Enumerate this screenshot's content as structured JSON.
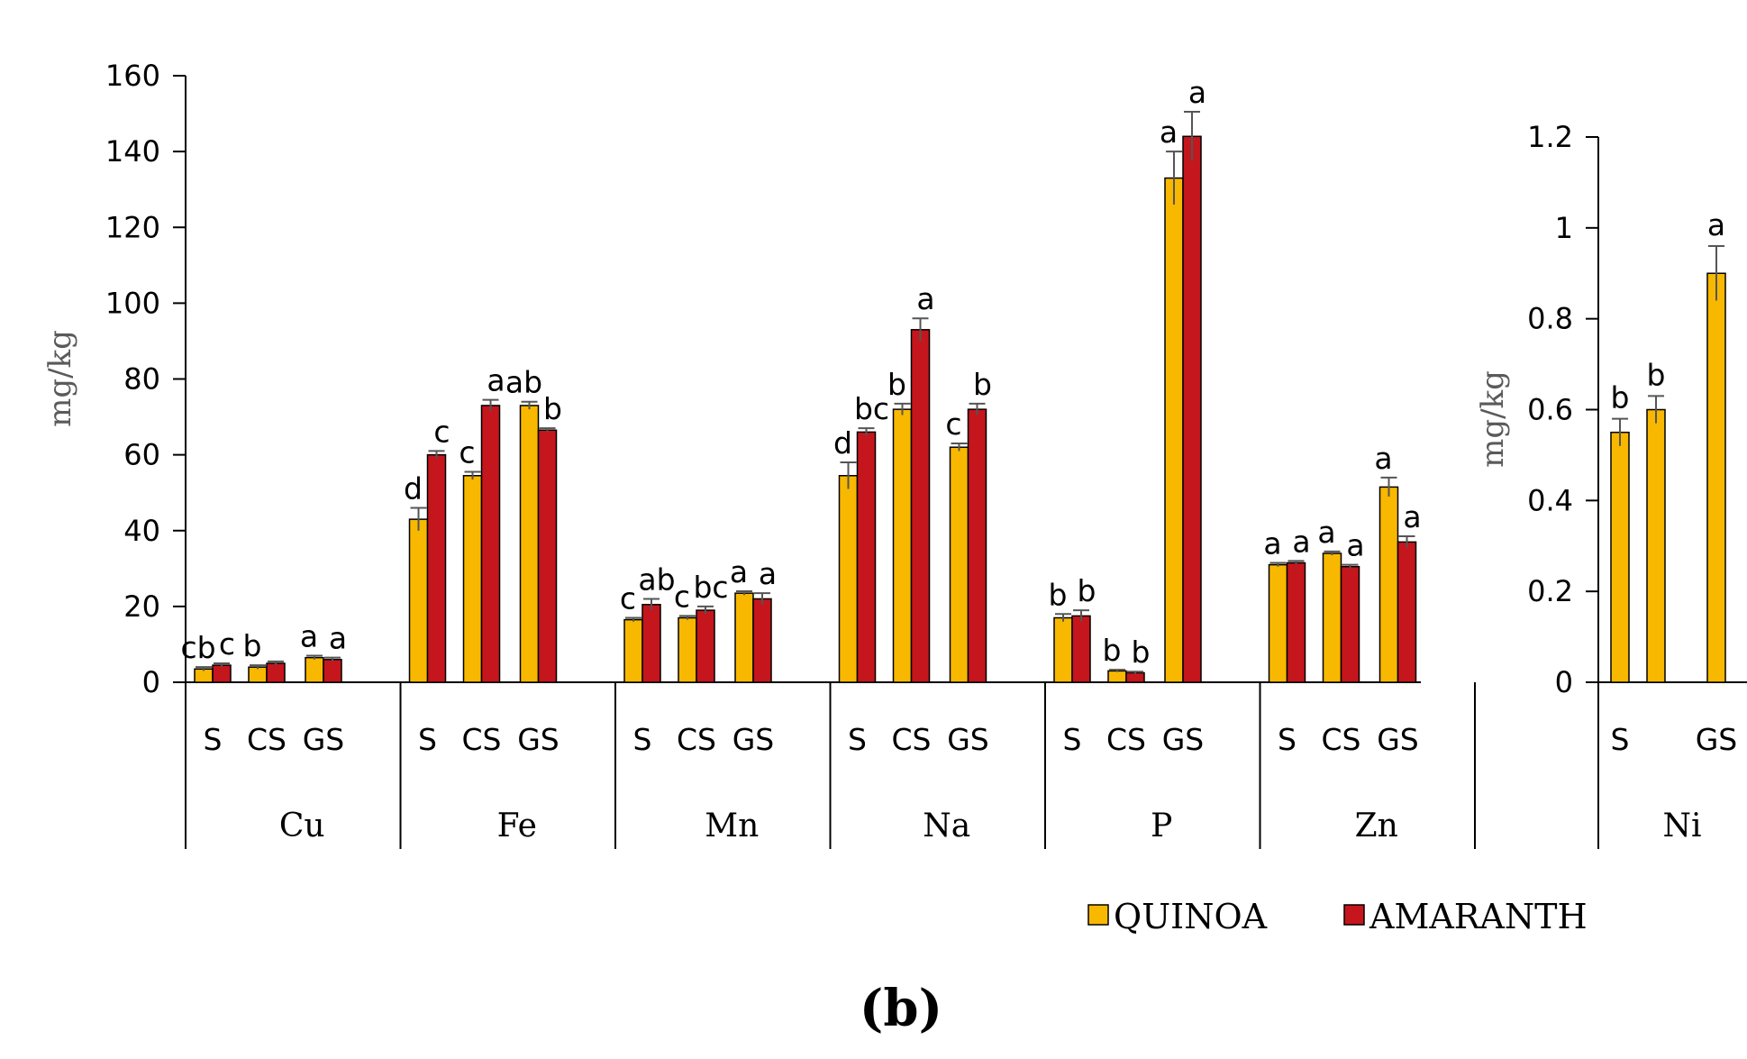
{
  "chart_data": [
    {
      "type": "bar",
      "panel": "left",
      "ylabel": "mg/kg",
      "ylim": [
        0,
        160
      ],
      "yticks": [
        "0",
        "20",
        "40",
        "60",
        "80",
        "100",
        "120",
        "140",
        "160"
      ],
      "grid": false,
      "series_names": [
        "QUINOA",
        "AMARANTH"
      ],
      "groups": [
        {
          "element": "Cu",
          "categories": [
            {
              "label": "S",
              "quinoa": 3.5,
              "quinoa_err": 0.5,
              "quinoa_sig": "cb",
              "amaranth": 4.5,
              "amaranth_err": 0.5,
              "amaranth_sig": "c"
            },
            {
              "label": "CS",
              "quinoa": 4.0,
              "quinoa_err": 0.5,
              "quinoa_sig": "b",
              "amaranth": 5.0,
              "amaranth_err": 0.5,
              "amaranth_sig": ""
            },
            {
              "label": "GS",
              "quinoa": 6.5,
              "quinoa_err": 0.5,
              "quinoa_sig": "a",
              "amaranth": 6.0,
              "amaranth_err": 0.5,
              "amaranth_sig": "a"
            }
          ]
        },
        {
          "element": "Fe",
          "categories": [
            {
              "label": "S",
              "quinoa": 43,
              "quinoa_err": 3,
              "quinoa_sig": "d",
              "amaranth": 60,
              "amaranth_err": 1,
              "amaranth_sig": "c"
            },
            {
              "label": "CS",
              "quinoa": 54.5,
              "quinoa_err": 1,
              "quinoa_sig": "c",
              "amaranth": 73,
              "amaranth_err": 1.5,
              "amaranth_sig": "a"
            },
            {
              "label": "GS",
              "quinoa": 73,
              "quinoa_err": 1,
              "quinoa_sig": "ab",
              "amaranth": 66.5,
              "amaranth_err": 0.5,
              "amaranth_sig": "b"
            }
          ]
        },
        {
          "element": "Mn",
          "categories": [
            {
              "label": "S",
              "quinoa": 16.5,
              "quinoa_err": 0.5,
              "quinoa_sig": "c",
              "amaranth": 20.5,
              "amaranth_err": 1.5,
              "amaranth_sig": "ab"
            },
            {
              "label": "CS",
              "quinoa": 17,
              "quinoa_err": 0.5,
              "quinoa_sig": "c",
              "amaranth": 19,
              "amaranth_err": 1,
              "amaranth_sig": "bc"
            },
            {
              "label": "GS",
              "quinoa": 23.5,
              "quinoa_err": 0.5,
              "quinoa_sig": "a",
              "amaranth": 22,
              "amaranth_err": 1.5,
              "amaranth_sig": "a"
            }
          ]
        },
        {
          "element": "Na",
          "categories": [
            {
              "label": "S",
              "quinoa": 54.5,
              "quinoa_err": 3.5,
              "quinoa_sig": "d",
              "amaranth": 66,
              "amaranth_err": 1,
              "amaranth_sig": "bc"
            },
            {
              "label": "CS",
              "quinoa": 72,
              "quinoa_err": 1.5,
              "quinoa_sig": "b",
              "amaranth": 93,
              "amaranth_err": 3,
              "amaranth_sig": "a"
            },
            {
              "label": "GS",
              "quinoa": 62,
              "quinoa_err": 1,
              "quinoa_sig": "c",
              "amaranth": 72,
              "amaranth_err": 1.5,
              "amaranth_sig": "b"
            }
          ]
        },
        {
          "element": "P",
          "categories": [
            {
              "label": "S",
              "quinoa": 17,
              "quinoa_err": 1,
              "quinoa_sig": "b",
              "amaranth": 17.5,
              "amaranth_err": 1.5,
              "amaranth_sig": "b"
            },
            {
              "label": "CS",
              "quinoa": 3,
              "quinoa_err": 0.3,
              "quinoa_sig": "b",
              "amaranth": 2.5,
              "amaranth_err": 0.3,
              "amaranth_sig": "b"
            },
            {
              "label": "GS",
              "quinoa": 133,
              "quinoa_err": 7,
              "quinoa_sig": "a",
              "amaranth": 144,
              "amaranth_err": 6.5,
              "amaranth_sig": "a"
            }
          ]
        },
        {
          "element": "Zn",
          "categories": [
            {
              "label": "S",
              "quinoa": 31,
              "quinoa_err": 0.5,
              "quinoa_sig": "a",
              "amaranth": 31.5,
              "amaranth_err": 0.5,
              "amaranth_sig": "a"
            },
            {
              "label": "CS",
              "quinoa": 34,
              "quinoa_err": 0.5,
              "quinoa_sig": "a",
              "amaranth": 30.5,
              "amaranth_err": 0.5,
              "amaranth_sig": "a"
            },
            {
              "label": "GS",
              "quinoa": 51.5,
              "quinoa_err": 2.5,
              "quinoa_sig": "a",
              "amaranth": 37,
              "amaranth_err": 1.5,
              "amaranth_sig": "a"
            }
          ]
        }
      ]
    },
    {
      "type": "bar",
      "panel": "right",
      "ylabel": "mg/kg",
      "ylim": [
        0,
        1.2
      ],
      "yticks": [
        "0",
        "0.2",
        "0.4",
        "0.6",
        "0.8",
        "1",
        "1.2"
      ],
      "grid": false,
      "groups": [
        {
          "element": "Ni",
          "categories": [
            {
              "label": "S",
              "quinoa": 0.55,
              "quinoa_err": 0.03,
              "quinoa_sig": "b"
            },
            {
              "label": "",
              "quinoa": 0.6,
              "quinoa_err": 0.03,
              "quinoa_sig": "b"
            },
            {
              "label": "GS",
              "quinoa": 0.9,
              "quinoa_err": 0.06,
              "quinoa_sig": "a"
            }
          ]
        }
      ]
    }
  ],
  "legend": [
    {
      "name": "QUINOA",
      "color": "#f8b800"
    },
    {
      "name": "AMARANTH",
      "color": "#c4161c"
    }
  ],
  "colors": {
    "quinoa": "#f8b800",
    "amaranth": "#c4161c",
    "axis": "#000000"
  },
  "panel_label": "(b)"
}
